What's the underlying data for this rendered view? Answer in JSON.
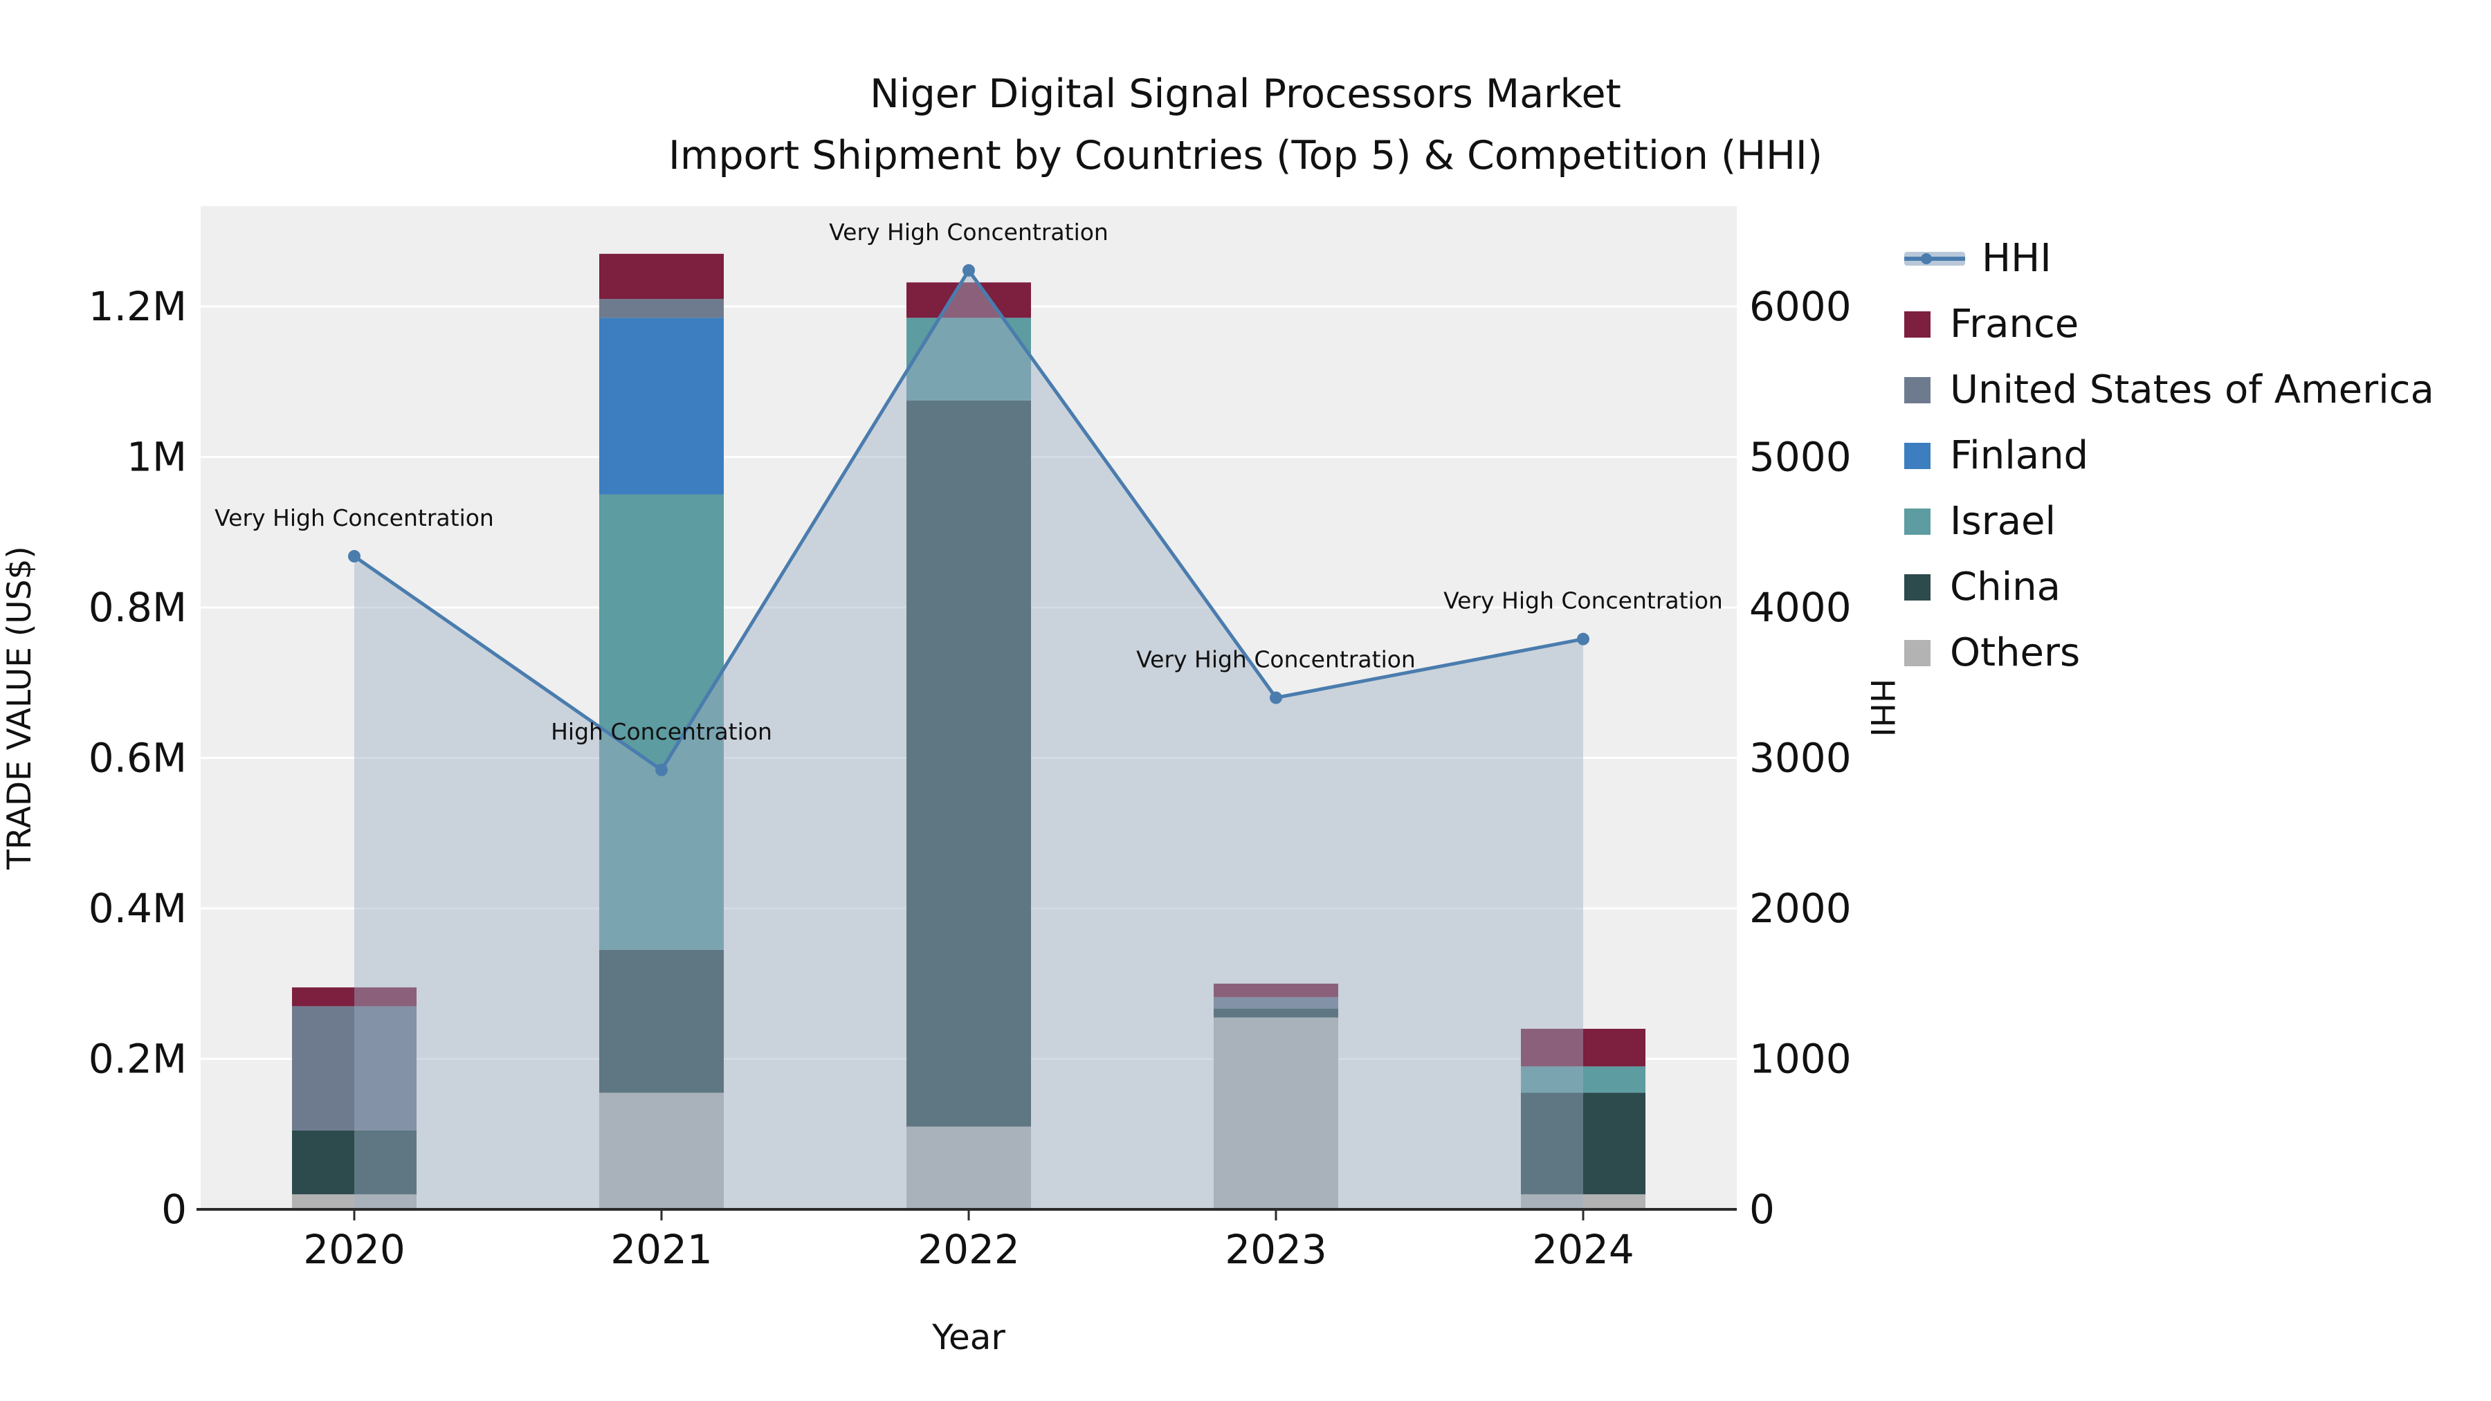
{
  "header": {
    "title_line1": "Niger Digital Signal Processors Market",
    "title_line2": "Import Shipment by Countries (Top 5) & Competition (HHI)"
  },
  "axes": {
    "x_label": "Year",
    "y_left_label": "TRADE VALUE (US$)",
    "y_right_label": "HHI",
    "x_ticks": [
      "2020",
      "2021",
      "2022",
      "2023",
      "2024"
    ],
    "y_left_ticks": [
      "0",
      "0.2M",
      "0.4M",
      "0.6M",
      "0.8M",
      "1M",
      "1.2M"
    ],
    "y_right_ticks": [
      "0",
      "1000",
      "2000",
      "3000",
      "4000",
      "5000",
      "6000"
    ]
  },
  "legend": {
    "items": [
      {
        "label": "HHI",
        "type": "line",
        "color": "#4a7cae",
        "band": "#b9c8d8"
      },
      {
        "label": "France",
        "type": "swatch",
        "color": "#7d1f3f"
      },
      {
        "label": "United States of America",
        "type": "swatch",
        "color": "#6e7b8f"
      },
      {
        "label": "Finland",
        "type": "swatch",
        "color": "#3c7ebf"
      },
      {
        "label": "Israel",
        "type": "swatch",
        "color": "#5d9ca0"
      },
      {
        "label": "China",
        "type": "swatch",
        "color": "#2d4a4d"
      },
      {
        "label": "Others",
        "type": "swatch",
        "color": "#b3b3b3"
      }
    ]
  },
  "chart_data": {
    "type": "bar+line",
    "title": "Niger Digital Signal Processors Market — Import Shipment by Countries (Top 5) & Competition (HHI)",
    "xlabel": "Year",
    "ylabel_left": "TRADE VALUE (US$)",
    "ylabel_right": "HHI",
    "categories": [
      "2020",
      "2021",
      "2022",
      "2023",
      "2024"
    ],
    "bar_series": [
      {
        "name": "Others",
        "color": "#b3b3b3",
        "values": [
          20000,
          155000,
          110000,
          255000,
          20000
        ]
      },
      {
        "name": "China",
        "color": "#2d4a4d",
        "values": [
          85000,
          190000,
          965000,
          12000,
          135000
        ]
      },
      {
        "name": "Israel",
        "color": "#5d9ca0",
        "values": [
          0,
          605000,
          110000,
          0,
          35000
        ]
      },
      {
        "name": "Finland",
        "color": "#3c7ebf",
        "values": [
          0,
          235000,
          0,
          0,
          0
        ]
      },
      {
        "name": "United States of America",
        "color": "#6e7b8f",
        "values": [
          165000,
          25000,
          0,
          15000,
          0
        ]
      },
      {
        "name": "France",
        "color": "#7d1f3f",
        "values": [
          25000,
          60000,
          47000,
          18000,
          50000
        ]
      }
    ],
    "line_series": {
      "name": "HHI",
      "color": "#4a7cae",
      "area_color": "#9db0c4",
      "values": [
        4340,
        2920,
        6240,
        3400,
        3790
      ]
    },
    "annotations": [
      {
        "index": 0,
        "text": "Very High Concentration"
      },
      {
        "index": 1,
        "text": "High Concentration"
      },
      {
        "index": 2,
        "text": "Very High Concentration"
      },
      {
        "index": 3,
        "text": "Very High Concentration"
      },
      {
        "index": 4,
        "text": "Very High Concentration"
      }
    ],
    "y_left_ticks_values": [
      0,
      200000,
      400000,
      600000,
      800000,
      1000000,
      1200000
    ],
    "y_right_ticks_values": [
      0,
      1000,
      2000,
      3000,
      4000,
      5000,
      6000
    ],
    "ylim_left": [
      0,
      1333000
    ],
    "ylim_right": [
      0,
      6670
    ],
    "grid": true,
    "legend_position": "right"
  }
}
